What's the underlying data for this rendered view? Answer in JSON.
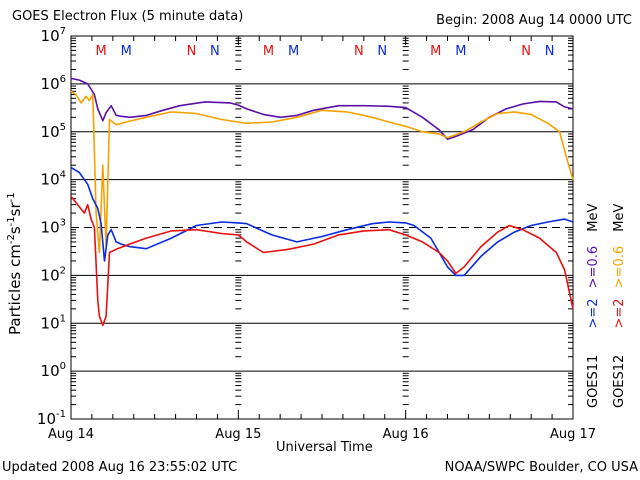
{
  "chart_data": {
    "type": "line",
    "title": "GOES Electron Flux (5 minute data)",
    "begin": "Begin: 2008 Aug 14 0000 UTC",
    "xlabel": "Universal Time",
    "ylabel": "Particles cm-2s-1sr-1",
    "yscale": "log",
    "ylim": [
      0.1,
      10000000
    ],
    "xlim_days": [
      0,
      3
    ],
    "ytick_bases": [
      "10",
      "10",
      "10",
      "10",
      "10",
      "10",
      "10",
      "10",
      "10"
    ],
    "ytick_exps": [
      "7",
      "6",
      "5",
      "4",
      "3",
      "2",
      "1",
      "0",
      "-1"
    ],
    "xtick_labels": [
      "Aug 14",
      "Aug 15",
      "Aug 16",
      "Aug 17"
    ],
    "threshold_line": 1000,
    "grid": true,
    "eclipse_markers": [
      {
        "label": "M",
        "day": 0.18,
        "sat": "GOES12"
      },
      {
        "label": "M",
        "day": 0.33,
        "sat": "GOES11"
      },
      {
        "label": "N",
        "day": 0.72,
        "sat": "GOES12"
      },
      {
        "label": "N",
        "day": 0.86,
        "sat": "GOES11"
      },
      {
        "label": "M",
        "day": 1.18,
        "sat": "GOES12"
      },
      {
        "label": "M",
        "day": 1.33,
        "sat": "GOES11"
      },
      {
        "label": "N",
        "day": 1.72,
        "sat": "GOES12"
      },
      {
        "label": "N",
        "day": 1.86,
        "sat": "GOES11"
      },
      {
        "label": "M",
        "day": 2.18,
        "sat": "GOES12"
      },
      {
        "label": "M",
        "day": 2.33,
        "sat": "GOES11"
      },
      {
        "label": "N",
        "day": 2.72,
        "sat": "GOES12"
      },
      {
        "label": "N",
        "day": 2.86,
        "sat": "GOES11"
      }
    ],
    "series": [
      {
        "name": "GOES11 >=0.6 MeV",
        "color": "#5a10a8",
        "x": [
          0,
          0.05,
          0.1,
          0.14,
          0.16,
          0.19,
          0.21,
          0.24,
          0.27,
          0.3,
          0.35,
          0.45,
          0.55,
          0.65,
          0.8,
          0.95,
          1.0,
          1.05,
          1.15,
          1.25,
          1.35,
          1.45,
          1.6,
          1.75,
          1.9,
          2.0,
          2.1,
          2.2,
          2.25,
          2.3,
          2.4,
          2.5,
          2.6,
          2.7,
          2.8,
          2.9,
          2.95,
          3.0
        ],
        "y": [
          1300000,
          1200000,
          1000000,
          600000,
          300000,
          170000,
          250000,
          350000,
          220000,
          210000,
          200000,
          220000,
          280000,
          350000,
          420000,
          400000,
          360000,
          300000,
          230000,
          200000,
          220000,
          280000,
          350000,
          350000,
          340000,
          320000,
          200000,
          110000,
          70000,
          80000,
          110000,
          200000,
          300000,
          380000,
          430000,
          420000,
          330000,
          300000
        ]
      },
      {
        "name": "GOES12 >=0.6 MeV",
        "color": "#f5a200",
        "x": [
          0,
          0.03,
          0.06,
          0.09,
          0.11,
          0.13,
          0.15,
          0.17,
          0.19,
          0.21,
          0.23,
          0.27,
          0.33,
          0.45,
          0.6,
          0.75,
          0.9,
          1.0,
          1.05,
          1.2,
          1.35,
          1.5,
          1.65,
          1.8,
          1.9,
          2.0,
          2.1,
          2.2,
          2.25,
          2.35,
          2.45,
          2.55,
          2.65,
          2.75,
          2.85,
          2.92,
          2.96,
          3.0
        ],
        "y": [
          700000,
          600000,
          400000,
          550000,
          450000,
          600000,
          2000,
          300,
          20000,
          400,
          180000,
          140000,
          160000,
          200000,
          260000,
          240000,
          180000,
          160000,
          150000,
          160000,
          200000,
          280000,
          260000,
          200000,
          160000,
          130000,
          100000,
          90000,
          75000,
          100000,
          160000,
          240000,
          260000,
          230000,
          150000,
          100000,
          30000,
          10000
        ]
      },
      {
        "name": "GOES11 >=2 MeV",
        "color": "#0a2bdd",
        "x": [
          0,
          0.05,
          0.1,
          0.13,
          0.16,
          0.18,
          0.2,
          0.22,
          0.24,
          0.27,
          0.3,
          0.35,
          0.45,
          0.6,
          0.75,
          0.9,
          1.0,
          1.05,
          1.2,
          1.35,
          1.5,
          1.65,
          1.8,
          1.9,
          2.0,
          2.05,
          2.15,
          2.25,
          2.3,
          2.35,
          2.45,
          2.55,
          2.65,
          2.75,
          2.85,
          2.95,
          3.0
        ],
        "y": [
          18000,
          14000,
          8000,
          4000,
          2500,
          1200,
          200,
          700,
          900,
          500,
          450,
          400,
          360,
          600,
          1100,
          1300,
          1250,
          1200,
          700,
          500,
          650,
          900,
          1200,
          1300,
          1250,
          1100,
          600,
          150,
          100,
          100,
          250,
          500,
          800,
          1100,
          1300,
          1500,
          1300
        ]
      },
      {
        "name": "GOES12 >=2 MeV",
        "color": "#e8100e",
        "x": [
          0,
          0.04,
          0.08,
          0.1,
          0.12,
          0.14,
          0.16,
          0.17,
          0.19,
          0.21,
          0.23,
          0.27,
          0.35,
          0.45,
          0.6,
          0.75,
          0.9,
          1.0,
          1.05,
          1.15,
          1.3,
          1.45,
          1.6,
          1.75,
          1.9,
          2.0,
          2.1,
          2.2,
          2.25,
          2.3,
          2.35,
          2.45,
          2.55,
          2.62,
          2.7,
          2.8,
          2.9,
          2.95,
          3.0
        ],
        "y": [
          4500,
          3000,
          2000,
          3000,
          1500,
          1000,
          30,
          14,
          9,
          14,
          300,
          350,
          450,
          600,
          850,
          900,
          750,
          700,
          500,
          300,
          350,
          450,
          700,
          850,
          900,
          700,
          500,
          300,
          200,
          110,
          150,
          400,
          800,
          1100,
          900,
          600,
          300,
          130,
          20
        ]
      }
    ]
  },
  "legend": {
    "g11_label": "GOES11",
    "g12_label": "GOES12",
    "g11_2": ">=2",
    "g11_06": ">=0.6",
    "g12_2": ">=2",
    "g12_06": ">=0.6",
    "mev1": "MeV",
    "mev2": "MeV"
  },
  "footer": {
    "updated": "Updated 2008 Aug 16 23:55:02 UTC",
    "credit": "NOAA/SWPC Boulder, CO USA"
  },
  "ylabel_parts": {
    "main": "Particles cm",
    "e1": "-2",
    "s": "s",
    "e2": "-1",
    "sr": "sr",
    "e3": "-1"
  }
}
